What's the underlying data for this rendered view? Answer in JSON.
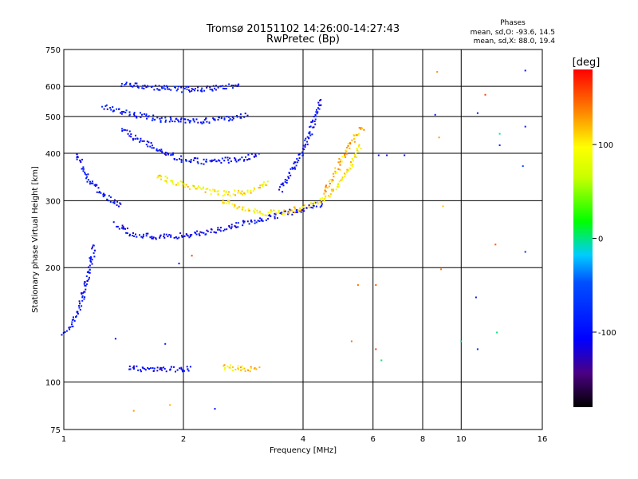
{
  "chart_data": {
    "type": "scatter",
    "title": "Tromsø 20151102 14:26:00-14:27:43",
    "subtitle": "RwPretec (Bp)",
    "xlabel": "Frequency [MHz]",
    "ylabel": "Stationary phase Virtual Height [km]",
    "x_scale": "log",
    "y_scale": "log",
    "xlim": [
      1,
      16
    ],
    "ylim": [
      75,
      750
    ],
    "x_ticks": [
      1,
      2,
      4,
      6,
      8,
      10,
      16
    ],
    "x_tick_labels": [
      "1",
      "2",
      "4",
      "6",
      "8",
      "10",
      "16"
    ],
    "y_ticks": [
      75,
      100,
      200,
      300,
      400,
      500,
      600,
      750
    ],
    "y_tick_labels": [
      "75",
      "100",
      "200",
      "300",
      "400",
      "500",
      "600",
      "750"
    ],
    "grid": true,
    "stats": {
      "heading": "Phases",
      "line_o": "mean, sd,O: -93.6, 14.5",
      "line_x": "mean, sd,X: 88.0, 19.4"
    },
    "colorbar": {
      "label": "[deg]",
      "ticks": [
        100,
        0,
        -100
      ],
      "tick_labels": [
        "100",
        "0",
        "-100"
      ],
      "range": [
        -180,
        180
      ]
    },
    "traces": [
      {
        "x": [
          1.0,
          1.04,
          1.08,
          1.12,
          1.16,
          1.2
        ],
        "y": [
          135,
          140,
          150,
          170,
          200,
          230
        ],
        "phase": -100
      },
      {
        "x": [
          1.08,
          1.12,
          1.18,
          1.25,
          1.32,
          1.4
        ],
        "y": [
          400,
          360,
          330,
          310,
          300,
          290
        ],
        "phase": -100
      },
      {
        "x": [
          1.35,
          1.5,
          1.7,
          1.9,
          2.2,
          2.6,
          3.0,
          3.5,
          4.0,
          4.5
        ],
        "y": [
          260,
          245,
          240,
          242,
          246,
          255,
          265,
          275,
          285,
          295
        ],
        "phase": -105
      },
      {
        "x": [
          1.4,
          1.6,
          1.8,
          2.0,
          2.3,
          2.7,
          3.1
        ],
        "y": [
          460,
          425,
          400,
          385,
          380,
          385,
          395
        ],
        "phase": -100
      },
      {
        "x": [
          1.25,
          1.5,
          1.8,
          2.1,
          2.5,
          2.9
        ],
        "y": [
          530,
          505,
          490,
          485,
          490,
          505
        ],
        "phase": -95
      },
      {
        "x": [
          1.4,
          1.7,
          2.0,
          2.4,
          2.8
        ],
        "y": [
          610,
          595,
          588,
          592,
          610
        ],
        "phase": -100
      },
      {
        "x": [
          1.7,
          2.0,
          2.3,
          2.6,
          3.0,
          3.3
        ],
        "y": [
          350,
          330,
          318,
          312,
          320,
          335
        ],
        "phase": 100
      },
      {
        "x": [
          2.5,
          2.8,
          3.2,
          3.6,
          4.0,
          4.4,
          4.8,
          5.2,
          5.6
        ],
        "y": [
          300,
          285,
          278,
          280,
          288,
          300,
          320,
          360,
          420
        ],
        "phase": 100
      },
      {
        "x": [
          3.5,
          3.8,
          4.1,
          4.3,
          4.45
        ],
        "y": [
          320,
          370,
          430,
          500,
          560
        ],
        "phase": -100
      },
      {
        "x": [
          4.5,
          4.8,
          5.1,
          5.4,
          5.7
        ],
        "y": [
          310,
          350,
          400,
          440,
          470
        ],
        "phase": 120
      },
      {
        "x": [
          1.45,
          1.6,
          1.8,
          2.0,
          2.1
        ],
        "y": [
          109,
          108,
          108,
          108,
          108
        ],
        "phase": -105
      },
      {
        "x": [
          2.5,
          2.7,
          2.9,
          3.1
        ],
        "y": [
          109,
          109,
          108,
          108
        ],
        "phase": 110
      }
    ],
    "scatter_points": [
      {
        "x": 6.2,
        "y": 395,
        "phase": -100
      },
      {
        "x": 6.5,
        "y": 395,
        "phase": -100
      },
      {
        "x": 7.2,
        "y": 395,
        "phase": -100
      },
      {
        "x": 8.7,
        "y": 655,
        "phase": 130
      },
      {
        "x": 8.6,
        "y": 505,
        "phase": -90
      },
      {
        "x": 8.8,
        "y": 440,
        "phase": 130
      },
      {
        "x": 9.0,
        "y": 290,
        "phase": 115
      },
      {
        "x": 8.9,
        "y": 198,
        "phase": 140
      },
      {
        "x": 11.5,
        "y": 570,
        "phase": 160
      },
      {
        "x": 11.0,
        "y": 510,
        "phase": -100
      },
      {
        "x": 12.5,
        "y": 450,
        "phase": 0
      },
      {
        "x": 12.5,
        "y": 420,
        "phase": -90
      },
      {
        "x": 14.5,
        "y": 660,
        "phase": -100
      },
      {
        "x": 14.5,
        "y": 470,
        "phase": -90
      },
      {
        "x": 14.3,
        "y": 370,
        "phase": -60
      },
      {
        "x": 12.2,
        "y": 230,
        "phase": 150
      },
      {
        "x": 14.5,
        "y": 220,
        "phase": -80
      },
      {
        "x": 10.9,
        "y": 167,
        "phase": -90
      },
      {
        "x": 12.3,
        "y": 135,
        "phase": 0
      },
      {
        "x": 10.0,
        "y": 128,
        "phase": 0
      },
      {
        "x": 11.0,
        "y": 122,
        "phase": -80
      },
      {
        "x": 5.3,
        "y": 128,
        "phase": 140
      },
      {
        "x": 6.1,
        "y": 122,
        "phase": 160
      },
      {
        "x": 6.3,
        "y": 114,
        "phase": 0
      },
      {
        "x": 5.5,
        "y": 180,
        "phase": 140
      },
      {
        "x": 6.1,
        "y": 180,
        "phase": 150
      },
      {
        "x": 1.35,
        "y": 130,
        "phase": -100
      },
      {
        "x": 1.8,
        "y": 126,
        "phase": -90
      },
      {
        "x": 1.5,
        "y": 84,
        "phase": 130
      },
      {
        "x": 1.85,
        "y": 87,
        "phase": 120
      },
      {
        "x": 2.4,
        "y": 85,
        "phase": -100
      },
      {
        "x": 1.95,
        "y": 205,
        "phase": -100
      },
      {
        "x": 2.1,
        "y": 215,
        "phase": 160
      }
    ]
  }
}
